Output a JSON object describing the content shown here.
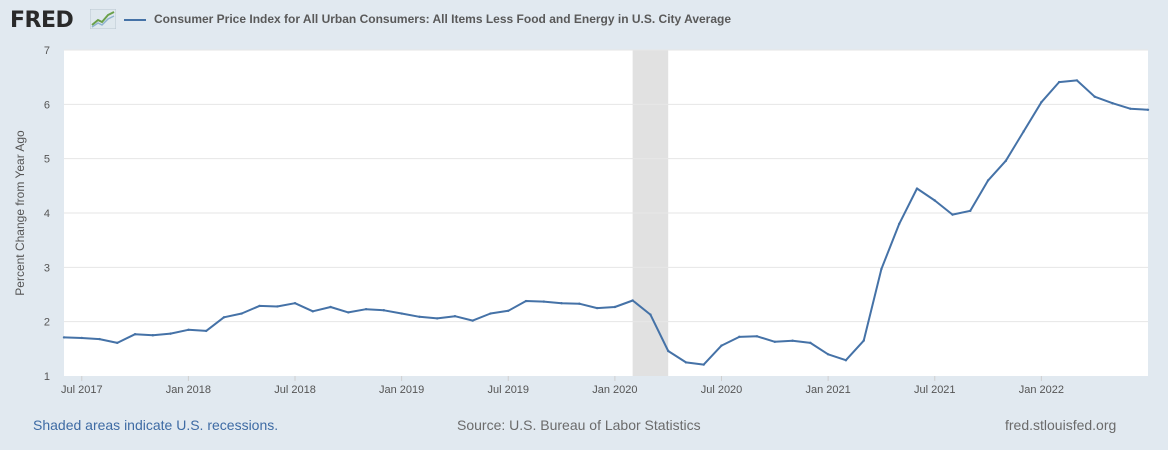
{
  "header": {
    "logo_text": "FRED",
    "logo_icon": "chart-trend-icon",
    "series_legend": "Consumer Price Index for All Urban Consumers: All Items Less Food and Energy in U.S. City Average"
  },
  "footer": {
    "recession_note": "Shaded areas indicate U.S. recessions.",
    "source": "Source: U.S. Bureau of Labor Statistics",
    "site": "fred.stlouisfed.org"
  },
  "colors": {
    "series": "#4572a7",
    "recession": "#e1e1e1",
    "background": "#e1e9f0",
    "plot": "#ffffff",
    "grid": "#e6e6e6"
  },
  "chart_data": {
    "type": "line",
    "ylabel": "Percent Change from Year Ago",
    "ylim": [
      1,
      7
    ],
    "yticks": [
      1,
      2,
      3,
      4,
      5,
      6,
      7
    ],
    "xlim": [
      "2017-06",
      "2022-07"
    ],
    "xticks": [
      {
        "date": "2017-07",
        "label": "Jul 2017"
      },
      {
        "date": "2018-01",
        "label": "Jan 2018"
      },
      {
        "date": "2018-07",
        "label": "Jul 2018"
      },
      {
        "date": "2019-01",
        "label": "Jan 2019"
      },
      {
        "date": "2019-07",
        "label": "Jul 2019"
      },
      {
        "date": "2020-01",
        "label": "Jan 2020"
      },
      {
        "date": "2020-07",
        "label": "Jul 2020"
      },
      {
        "date": "2021-01",
        "label": "Jan 2021"
      },
      {
        "date": "2021-07",
        "label": "Jul 2021"
      },
      {
        "date": "2022-01",
        "label": "Jan 2022"
      }
    ],
    "recession": {
      "start": "2020-02",
      "end": "2020-04"
    },
    "grid": true,
    "series": [
      {
        "x": [
          "2017-06",
          "2017-07",
          "2017-08",
          "2017-09",
          "2017-10",
          "2017-11",
          "2017-12",
          "2018-01",
          "2018-02",
          "2018-03",
          "2018-04",
          "2018-05",
          "2018-06",
          "2018-07",
          "2018-08",
          "2018-09",
          "2018-10",
          "2018-11",
          "2018-12",
          "2019-01",
          "2019-02",
          "2019-03",
          "2019-04",
          "2019-05",
          "2019-06",
          "2019-07",
          "2019-08",
          "2019-09",
          "2019-10",
          "2019-11",
          "2019-12",
          "2020-01",
          "2020-02",
          "2020-03",
          "2020-04",
          "2020-05",
          "2020-06",
          "2020-07",
          "2020-08",
          "2020-09",
          "2020-10",
          "2020-11",
          "2020-12",
          "2021-01",
          "2021-02",
          "2021-03",
          "2021-04",
          "2021-05",
          "2021-06",
          "2021-07",
          "2021-08",
          "2021-09",
          "2021-10",
          "2021-11",
          "2021-12",
          "2022-01",
          "2022-02",
          "2022-03",
          "2022-04",
          "2022-05",
          "2022-06",
          "2022-07"
        ],
        "values": [
          1.71,
          1.7,
          1.68,
          1.61,
          1.77,
          1.75,
          1.78,
          1.85,
          1.83,
          2.08,
          2.15,
          2.29,
          2.28,
          2.34,
          2.19,
          2.27,
          2.17,
          2.23,
          2.21,
          2.15,
          2.09,
          2.06,
          2.1,
          2.02,
          2.15,
          2.2,
          2.38,
          2.37,
          2.34,
          2.33,
          2.25,
          2.27,
          2.39,
          2.13,
          1.46,
          1.25,
          1.21,
          1.56,
          1.72,
          1.73,
          1.63,
          1.65,
          1.61,
          1.4,
          1.29,
          1.65,
          2.97,
          3.8,
          4.45,
          4.23,
          3.97,
          4.04,
          4.6,
          4.96,
          5.5,
          6.04,
          6.41,
          6.44,
          6.14,
          6.02,
          5.92,
          5.9
        ]
      }
    ]
  }
}
